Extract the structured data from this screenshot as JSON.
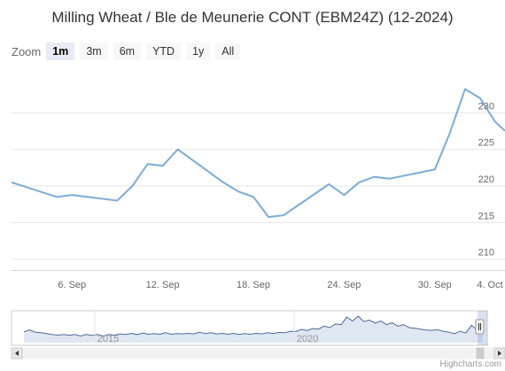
{
  "chart_data": {
    "type": "line",
    "title": "Milling Wheat / Ble de Meunerie CONT (EBM24Z) (12-2024)",
    "zoom": {
      "label": "Zoom",
      "buttons": [
        "1m",
        "3m",
        "6m",
        "YTD",
        "1y",
        "All"
      ],
      "active": "1m"
    },
    "x": [
      "2024-09-04",
      "2024-09-05",
      "2024-09-06",
      "2024-09-09",
      "2024-09-10",
      "2024-09-11",
      "2024-09-12",
      "2024-09-13",
      "2024-09-16",
      "2024-09-17",
      "2024-09-18",
      "2024-09-19",
      "2024-09-20",
      "2024-09-23",
      "2024-09-24",
      "2024-09-25",
      "2024-09-26",
      "2024-09-27",
      "2024-09-30",
      "2024-10-01",
      "2024-10-02",
      "2024-10-03",
      "2024-10-04"
    ],
    "values": [
      220.5,
      218.5,
      218.75,
      218.0,
      220.0,
      223.0,
      222.75,
      225.0,
      220.5,
      219.25,
      218.5,
      215.75,
      216.0,
      220.25,
      218.75,
      220.5,
      221.25,
      221.0,
      222.25,
      227.25,
      233.25,
      232.0,
      228.75
    ],
    "xticks": [
      "6. Sep",
      "12. Sep",
      "18. Sep",
      "24. Sep",
      "30. Sep",
      "4. Oct"
    ],
    "yticks": [
      "210",
      "215",
      "220",
      "225",
      "230"
    ],
    "ylim": [
      208.5,
      235.5
    ],
    "grid": true,
    "series_color": "#7cacd7",
    "navigator": {
      "labels": [
        "2015",
        "2020"
      ],
      "values": [
        0.36,
        0.42,
        0.35,
        0.33,
        0.3,
        0.27,
        0.25,
        0.27,
        0.24,
        0.27,
        0.22,
        0.27,
        0.24,
        0.27,
        0.22,
        0.27,
        0.25,
        0.29,
        0.27,
        0.31,
        0.27,
        0.32,
        0.28,
        0.3,
        0.28,
        0.33,
        0.28,
        0.3,
        0.29,
        0.31,
        0.29,
        0.35,
        0.3,
        0.33,
        0.29,
        0.31,
        0.28,
        0.31,
        0.27,
        0.3,
        0.28,
        0.31,
        0.29,
        0.33,
        0.3,
        0.34,
        0.33,
        0.38,
        0.37,
        0.44,
        0.4,
        0.47,
        0.45,
        0.55,
        0.5,
        0.62,
        0.6,
        0.85,
        0.72,
        0.88,
        0.7,
        0.75,
        0.65,
        0.72,
        0.6,
        0.66,
        0.55,
        0.6,
        0.5,
        0.48,
        0.45,
        0.42,
        0.41,
        0.43,
        0.38,
        0.35,
        0.3,
        0.38,
        0.32,
        0.58,
        0.42,
        0.36
      ],
      "color": "#4e6a99"
    },
    "credit": "Highcharts.com"
  }
}
